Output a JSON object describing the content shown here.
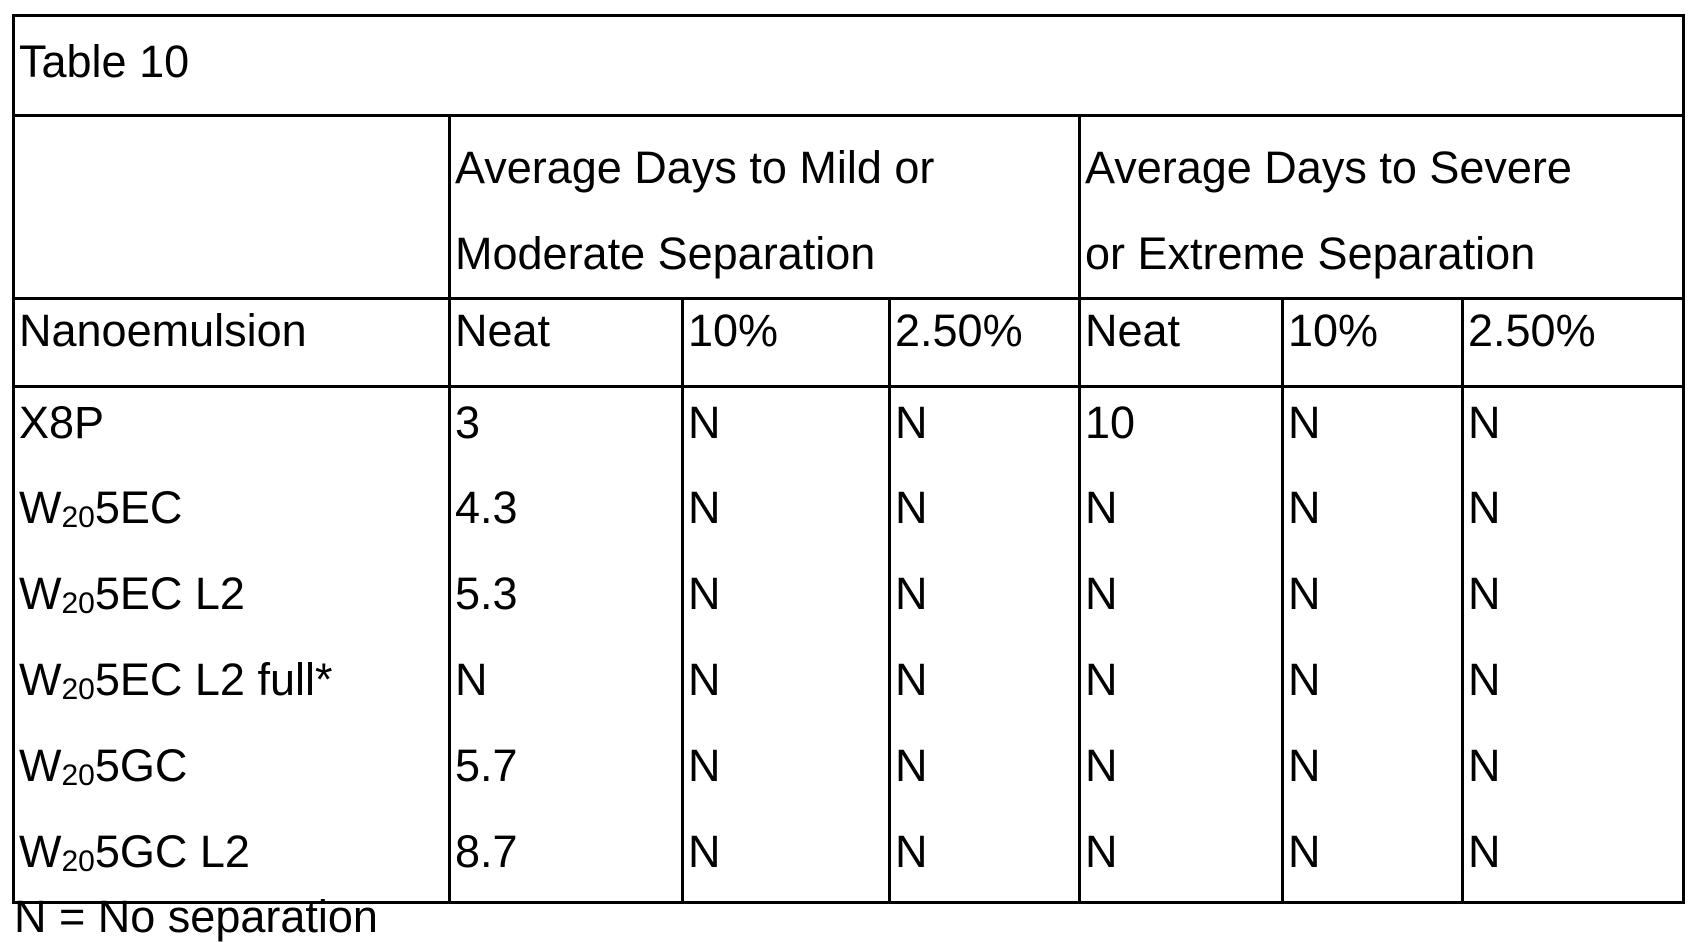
{
  "table": {
    "caption": "Table 10",
    "group_headers": {
      "mild": [
        "Average Days to Mild or",
        "Moderate Separation"
      ],
      "severe": [
        "Average Days to Severe",
        "or Extreme Separation"
      ]
    },
    "columns": [
      "Nanoemulsion",
      "Neat",
      "10%",
      "2.50%",
      "Neat",
      "10%",
      "2.50%"
    ],
    "rows": [
      {
        "name_pre": "X8P",
        "name_sub": "",
        "name_post": "",
        "values": [
          "3",
          "N",
          "N",
          "10",
          "N",
          "N"
        ]
      },
      {
        "name_pre": "W",
        "name_sub": "20",
        "name_post": "5EC",
        "values": [
          "4.3",
          "N",
          "N",
          "N",
          "N",
          "N"
        ]
      },
      {
        "name_pre": "W",
        "name_sub": "20",
        "name_post": "5EC L2",
        "values": [
          "5.3",
          "N",
          "N",
          "N",
          "N",
          "N"
        ]
      },
      {
        "name_pre": "W",
        "name_sub": "20",
        "name_post": "5EC L2 full*",
        "values": [
          "N",
          "N",
          "N",
          "N",
          "N",
          "N"
        ]
      },
      {
        "name_pre": "W",
        "name_sub": "20",
        "name_post": "5GC",
        "values": [
          "5.7",
          "N",
          "N",
          "N",
          "N",
          "N"
        ]
      },
      {
        "name_pre": "W",
        "name_sub": "20",
        "name_post": "5GC L2",
        "values": [
          "8.7",
          "N",
          "N",
          "N",
          "N",
          "N"
        ]
      }
    ]
  },
  "footnote": "N = No separation"
}
